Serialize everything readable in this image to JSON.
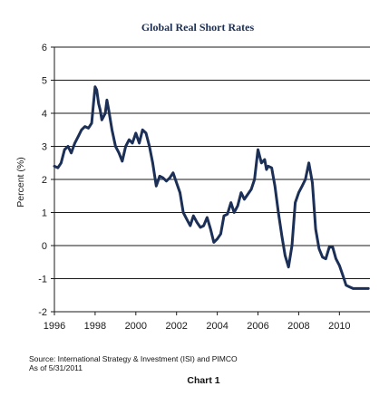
{
  "chart_data": {
    "type": "line",
    "title": "Global Real Short Rates",
    "ylabel": "Percent (%)",
    "xlabel": "",
    "ylim": [
      -2,
      6
    ],
    "xlim": [
      1996,
      2011.5
    ],
    "x_ticks": [
      "1996",
      "1998",
      "2000",
      "2002",
      "2004",
      "2006",
      "2008",
      "2010"
    ],
    "y_ticks": [
      "-2",
      "-1",
      "0",
      "1",
      "2",
      "3",
      "4",
      "5",
      "6"
    ],
    "grid": "horizontal",
    "line_color": "#1b2f57",
    "series": [
      {
        "x": [
          1996.0,
          1996.17,
          1996.33,
          1996.5,
          1996.67,
          1996.83,
          1997.0,
          1997.17,
          1997.33,
          1997.5,
          1997.67,
          1997.83,
          1997.92,
          1998.0,
          1998.08,
          1998.17,
          1998.25,
          1998.33,
          1998.5,
          1998.58,
          1998.67,
          1998.83,
          1999.0,
          1999.17,
          1999.33,
          1999.5,
          1999.67,
          1999.83,
          2000.0,
          2000.17,
          2000.33,
          2000.5,
          2000.67,
          2000.83,
          2001.0,
          2001.17,
          2001.33,
          2001.5,
          2001.67,
          2001.83,
          2002.0,
          2002.17,
          2002.33,
          2002.5,
          2002.67,
          2002.83,
          2003.0,
          2003.17,
          2003.33,
          2003.5,
          2003.67,
          2003.83,
          2004.0,
          2004.17,
          2004.33,
          2004.5,
          2004.67,
          2004.83,
          2005.0,
          2005.17,
          2005.33,
          2005.5,
          2005.67,
          2005.83,
          2006.0,
          2006.17,
          2006.33,
          2006.42,
          2006.5,
          2006.67,
          2006.83,
          2007.0,
          2007.17,
          2007.33,
          2007.5,
          2007.67,
          2007.83,
          2008.0,
          2008.17,
          2008.33,
          2008.5,
          2008.67,
          2008.83,
          2009.0,
          2009.17,
          2009.33,
          2009.5,
          2009.67,
          2009.83,
          2010.0,
          2010.17,
          2010.33,
          2010.5,
          2010.67,
          2010.83,
          2011.0,
          2011.17,
          2011.33,
          2011.42
        ],
        "y": [
          2.4,
          2.35,
          2.5,
          2.9,
          3.0,
          2.8,
          3.1,
          3.3,
          3.5,
          3.6,
          3.55,
          3.7,
          4.3,
          4.8,
          4.7,
          4.3,
          4.1,
          3.8,
          4.0,
          4.4,
          4.1,
          3.5,
          3.0,
          2.8,
          2.55,
          3.0,
          3.2,
          3.1,
          3.4,
          3.1,
          3.5,
          3.4,
          3.0,
          2.5,
          1.8,
          2.1,
          2.05,
          1.95,
          2.05,
          2.2,
          1.9,
          1.6,
          1.0,
          0.8,
          0.6,
          0.9,
          0.7,
          0.55,
          0.6,
          0.85,
          0.5,
          0.1,
          0.2,
          0.35,
          0.9,
          0.95,
          1.3,
          1.0,
          1.2,
          1.6,
          1.4,
          1.55,
          1.7,
          2.0,
          2.9,
          2.5,
          2.6,
          2.3,
          2.4,
          2.35,
          1.8,
          1.0,
          0.3,
          -0.3,
          -0.65,
          0.0,
          1.3,
          1.6,
          1.8,
          2.0,
          2.5,
          1.9,
          0.5,
          -0.1,
          -0.35,
          -0.4,
          -0.05,
          -0.05,
          -0.4,
          -0.6,
          -0.9,
          -1.2,
          -1.25,
          -1.3,
          -1.3,
          -1.3,
          -1.3,
          -1.3,
          -1.3
        ]
      }
    ]
  },
  "footer": {
    "source": "Source: International Strategy & Investment (ISI) and PIMCO",
    "as_of": "As of 5/31/2011",
    "caption": "Chart 1"
  }
}
